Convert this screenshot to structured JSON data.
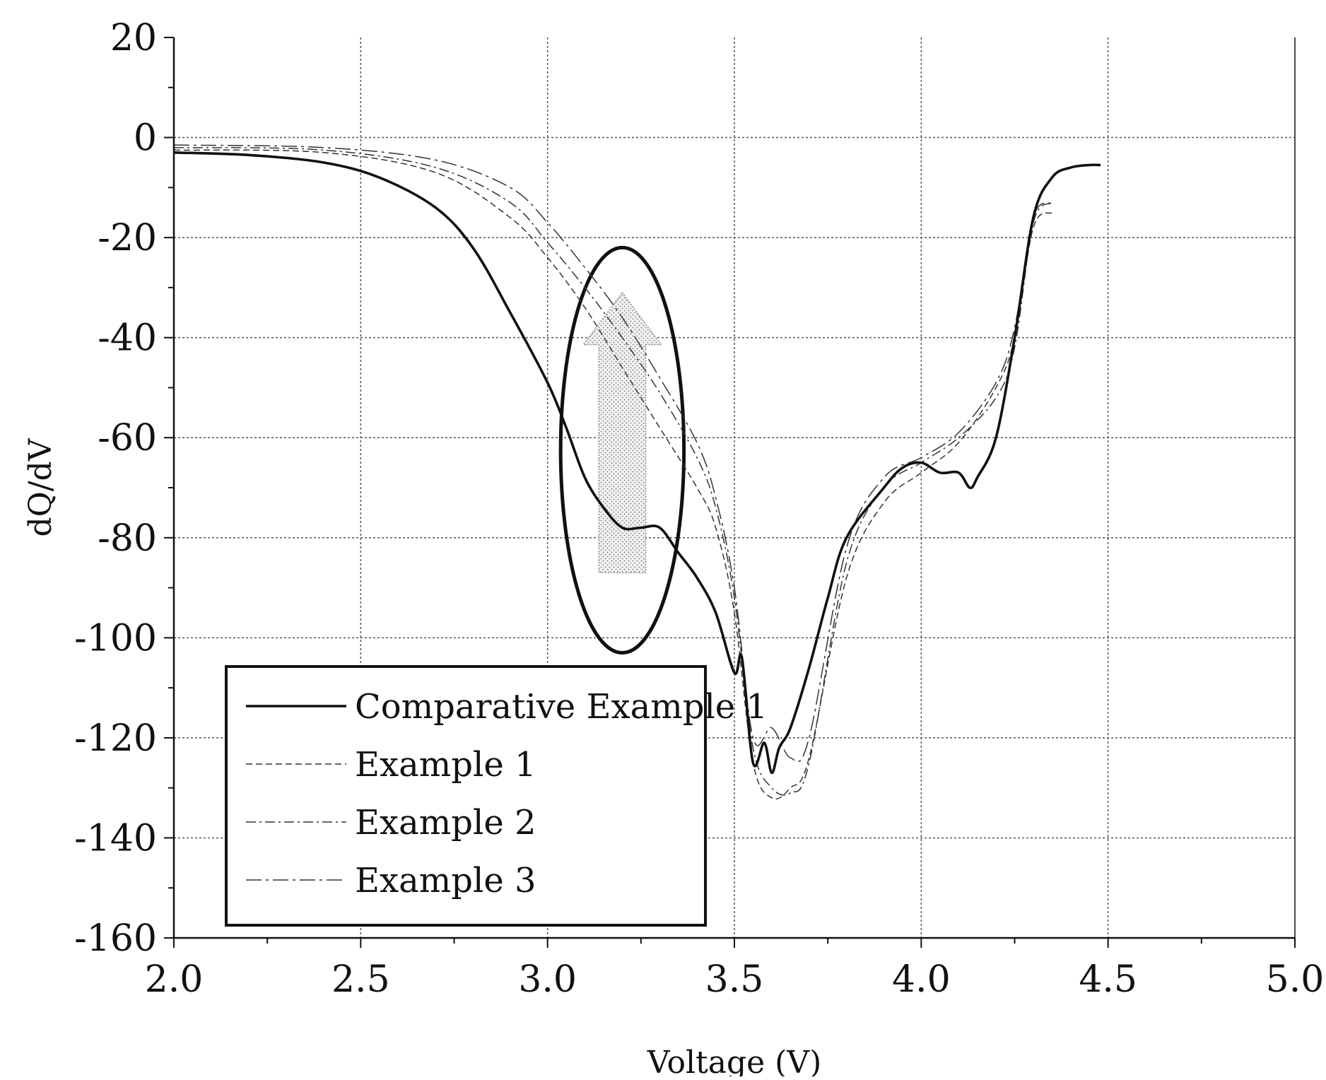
{
  "chart_data": {
    "type": "line",
    "title": "",
    "xlabel": "Voltage (V)",
    "ylabel": "dQ/dV",
    "xlim": [
      2.0,
      5.0
    ],
    "ylim": [
      -160,
      20
    ],
    "x_ticks": [
      "2.0",
      "2.5",
      "3.0",
      "3.5",
      "4.0",
      "4.5",
      "5.0"
    ],
    "y_ticks": [
      "20",
      "0",
      "-20",
      "-40",
      "-60",
      "-80",
      "-100",
      "-120",
      "-140",
      "-160"
    ],
    "grid": true,
    "legend": "bottom-left",
    "annotations": [
      "ellipse around 3.05–3.35 V, -22 to -103",
      "shaded upward arrow at ~3.2 V from about -87 to -31"
    ],
    "series": [
      {
        "name": "Comparative Example 1",
        "style": "solid-bold",
        "x": [
          2.0,
          2.2,
          2.4,
          2.55,
          2.7,
          2.8,
          2.9,
          3.0,
          3.05,
          3.1,
          3.15,
          3.2,
          3.25,
          3.3,
          3.35,
          3.4,
          3.45,
          3.5,
          3.52,
          3.55,
          3.58,
          3.6,
          3.62,
          3.65,
          3.7,
          3.75,
          3.8,
          3.9,
          3.95,
          4.0,
          4.05,
          4.1,
          4.13,
          4.15,
          4.2,
          4.25,
          4.3,
          4.35,
          4.4,
          4.45,
          4.48
        ],
        "y": [
          -3,
          -3.5,
          -5,
          -8,
          -14,
          -22,
          -35,
          -49,
          -58,
          -68,
          -74,
          -78,
          -78,
          -78,
          -83,
          -88,
          -95,
          -107,
          -104,
          -125,
          -121,
          -127,
          -122,
          -118,
          -106,
          -92,
          -80,
          -70,
          -66,
          -65,
          -67,
          -67,
          -70,
          -68,
          -60,
          -40,
          -16,
          -8,
          -6,
          -5.5,
          -5.5
        ]
      },
      {
        "name": "Example 1",
        "style": "dashed",
        "x": [
          2.0,
          2.4,
          2.7,
          2.9,
          3.0,
          3.1,
          3.2,
          3.3,
          3.4,
          3.45,
          3.5,
          3.55,
          3.6,
          3.65,
          3.7,
          3.8,
          3.9,
          4.0,
          4.1,
          4.2,
          4.25,
          4.3,
          4.35
        ],
        "y": [
          -2.5,
          -3,
          -7,
          -16,
          -24,
          -34,
          -46,
          -58,
          -70,
          -78,
          -95,
          -125,
          -132,
          -130,
          -124,
          -88,
          -73,
          -67,
          -61,
          -50,
          -40,
          -18,
          -15
        ]
      },
      {
        "name": "Example 2",
        "style": "dash-dot",
        "x": [
          2.0,
          2.4,
          2.7,
          2.9,
          3.0,
          3.1,
          3.2,
          3.3,
          3.4,
          3.45,
          3.5,
          3.55,
          3.6,
          3.65,
          3.7,
          3.8,
          3.9,
          4.0,
          4.1,
          4.2,
          4.25,
          4.3,
          4.35
        ],
        "y": [
          -2,
          -2.5,
          -6,
          -13,
          -21,
          -30,
          -40,
          -51,
          -64,
          -74,
          -92,
          -122,
          -130,
          -131,
          -125,
          -85,
          -70,
          -65,
          -60,
          -52,
          -42,
          -17,
          -13
        ]
      },
      {
        "name": "Example 3",
        "style": "dash-dot-long",
        "x": [
          2.0,
          2.4,
          2.7,
          2.9,
          3.0,
          3.1,
          3.2,
          3.3,
          3.4,
          3.45,
          3.5,
          3.55,
          3.6,
          3.65,
          3.7,
          3.8,
          3.9,
          4.0,
          4.1,
          4.2,
          4.25,
          4.3,
          4.35
        ],
        "y": [
          -1.5,
          -2,
          -4.5,
          -10,
          -17,
          -26,
          -36,
          -48,
          -61,
          -72,
          -90,
          -120,
          -118,
          -124,
          -120,
          -82,
          -68,
          -64,
          -59,
          -49,
          -38,
          -16,
          -13
        ]
      }
    ]
  }
}
